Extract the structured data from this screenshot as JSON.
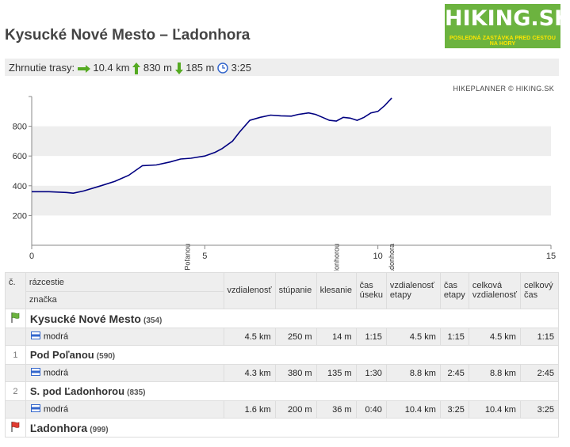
{
  "page": {
    "title": "Kysucké Nové Mesto – Ľadonhora"
  },
  "logo": {
    "text": "HIKING.SK",
    "tagline": "POSLEDNÁ ZASTÁVKA  PRED CESTOU NA HORY"
  },
  "summary": {
    "label": "Zhrnutie trasy:",
    "distance": "10.4 km",
    "ascent": "830 m",
    "descent": "185 m",
    "time": "3:25",
    "colors": {
      "arrow": "#55aa22",
      "clock": "#3366cc"
    }
  },
  "credit": "HIKEPLANNER © HIKING.SK",
  "chart_data": {
    "type": "area",
    "x_ticks": [
      "0",
      "5",
      "10",
      "15"
    ],
    "y_ticks": [
      "200",
      "400",
      "600",
      "800"
    ],
    "xlim": [
      0,
      15
    ],
    "ylim": [
      0,
      1000
    ],
    "grid": "alternating horizontal bands",
    "line_color": "#000080",
    "series": [
      {
        "x": [
          0,
          0.5,
          1.0,
          1.2,
          1.5,
          2.0,
          2.4,
          2.8,
          3.2,
          3.6,
          4.0,
          4.3,
          4.6,
          5.0,
          5.3,
          5.5,
          5.8,
          6.0,
          6.3,
          6.6,
          6.9,
          7.2,
          7.5,
          7.7,
          8.0,
          8.2,
          8.4,
          8.6,
          8.8,
          9.0,
          9.2,
          9.4,
          9.6,
          9.8,
          10.0,
          10.2,
          10.4
        ],
        "y": [
          360,
          360,
          355,
          350,
          365,
          400,
          430,
          470,
          535,
          540,
          560,
          580,
          585,
          600,
          625,
          650,
          700,
          760,
          840,
          860,
          875,
          870,
          868,
          880,
          890,
          880,
          860,
          840,
          835,
          860,
          855,
          840,
          860,
          890,
          900,
          940,
          990
        ]
      }
    ],
    "markers": [
      {
        "label": "Pod Poľanou",
        "x": 4.5
      },
      {
        "label": "S. pod Ľadonhorou",
        "x": 8.8
      },
      {
        "label": "Ľadonhora",
        "x": 10.4
      }
    ]
  },
  "table": {
    "headers": {
      "index": "č.",
      "junction": "rázcestie",
      "mark": "značka",
      "distance": "vzdialenosť",
      "ascent": "stúpanie",
      "descent": "klesanie",
      "segment_time": "čas úseku",
      "stage_distance": "vzdialenosť etapy",
      "stage_time": "čas etapy",
      "total_distance": "celková vzdialenosť",
      "total_time": "celkový čas"
    },
    "stops": [
      {
        "index": "",
        "name": "Kysucké Nové Mesto",
        "alt": "(354)"
      },
      {
        "index": "1",
        "name": "Pod Poľanou",
        "alt": "(590)"
      },
      {
        "index": "2",
        "name": "S. pod Ľadonhorou",
        "alt": "(835)"
      },
      {
        "index": "",
        "name": "Ľadonhora",
        "alt": "(999)"
      }
    ],
    "segments": [
      {
        "mark": "modrá",
        "distance": "4.5 km",
        "ascent": "250 m",
        "descent": "14 m",
        "time": "1:15",
        "stage_distance": "4.5 km",
        "stage_time": "1:15",
        "total_distance": "4.5 km",
        "total_time": "1:15"
      },
      {
        "mark": "modrá",
        "distance": "4.3 km",
        "ascent": "380 m",
        "descent": "135 m",
        "time": "1:30",
        "stage_distance": "8.8 km",
        "stage_time": "2:45",
        "total_distance": "8.8 km",
        "total_time": "2:45"
      },
      {
        "mark": "modrá",
        "distance": "1.6 km",
        "ascent": "200 m",
        "descent": "36 m",
        "time": "0:40",
        "stage_distance": "10.4 km",
        "stage_time": "3:25",
        "total_distance": "10.4 km",
        "total_time": "3:25"
      }
    ],
    "mark_color": "#3366cc"
  }
}
